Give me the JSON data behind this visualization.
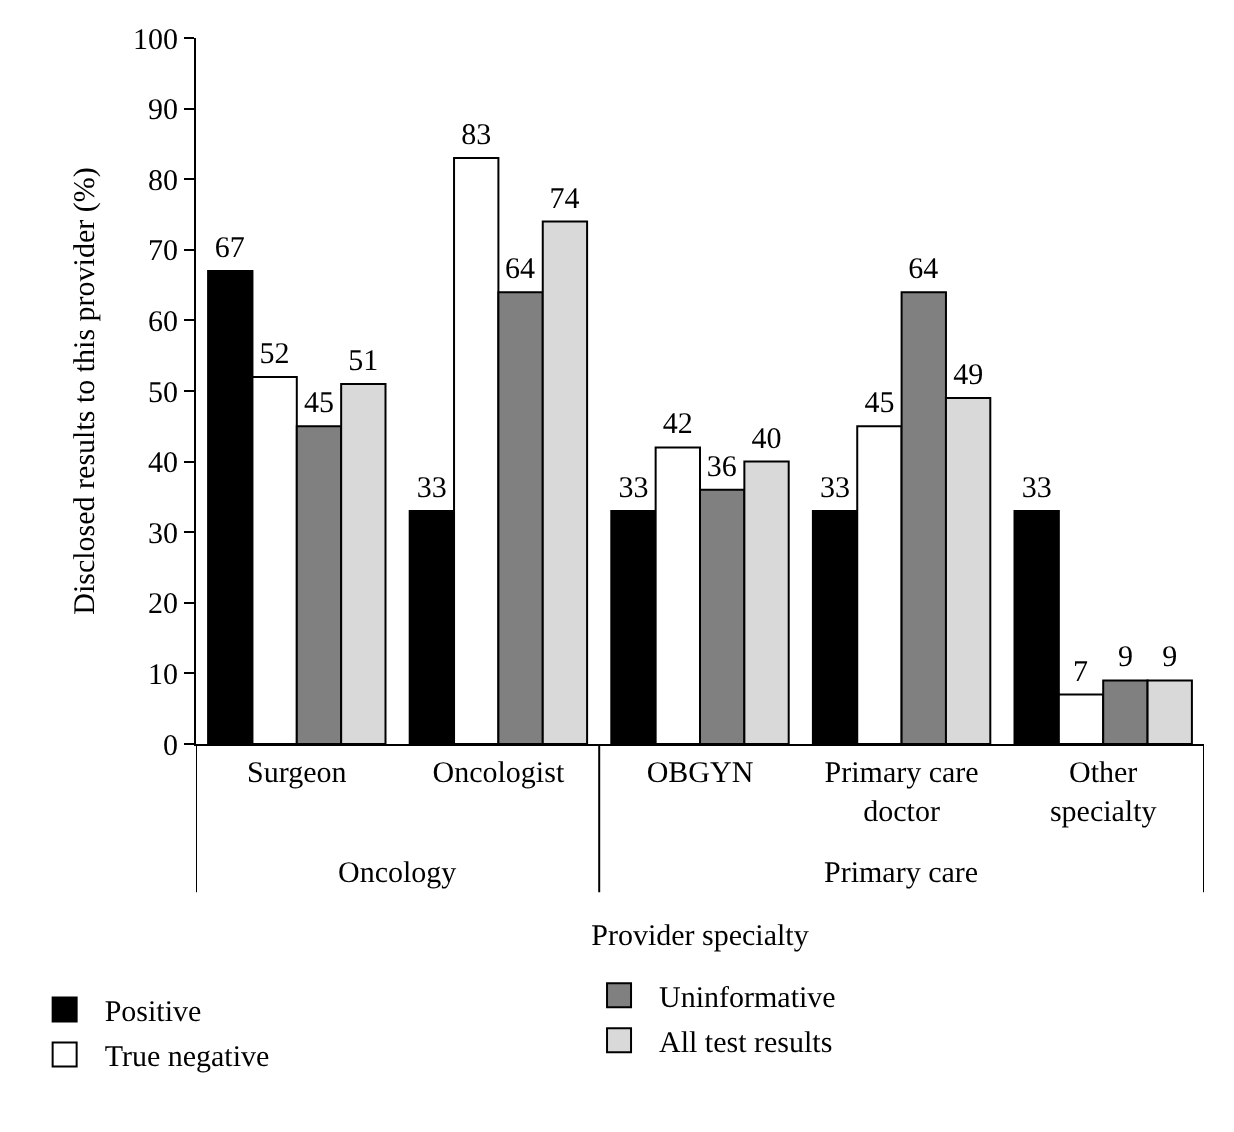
{
  "chart_data": {
    "type": "bar",
    "xlabel": "Provider specialty",
    "ylabel": "Disclosed results to this provider (%)",
    "categories": [
      "Surgeon",
      "Oncologist",
      "OBGYN",
      "Primary care doctor",
      "Other specialty"
    ],
    "series": [
      {
        "name": "Positive",
        "color": "#000000",
        "values": [
          67,
          33,
          33,
          33,
          33
        ]
      },
      {
        "name": "True negative",
        "color": "#ffffff",
        "values": [
          52,
          83,
          42,
          45,
          7
        ]
      },
      {
        "name": "Uninformative",
        "color": "#808080",
        "values": [
          45,
          64,
          36,
          64,
          9
        ]
      },
      {
        "name": "All test results",
        "color": "#d9d9d9",
        "values": [
          51,
          74,
          40,
          49,
          9
        ]
      }
    ],
    "ylim": [
      0,
      100
    ],
    "yticks": [
      0,
      10,
      20,
      30,
      40,
      50,
      60,
      70,
      80,
      90,
      100
    ],
    "annotations": [
      "Oncology",
      "Primary care"
    ],
    "data_labels": true,
    "legend": "bottom"
  }
}
